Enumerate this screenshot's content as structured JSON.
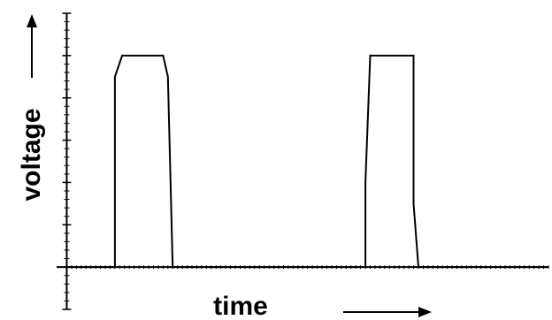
{
  "chart_data": {
    "type": "line",
    "xlabel": "time",
    "ylabel": "voltage",
    "grid": false,
    "axis_arrows": true,
    "line_color": "#000000",
    "series": [
      {
        "points": [
          [
            0.0,
            0.0
          ],
          [
            1.0,
            0.0
          ],
          [
            1.0,
            4.5
          ],
          [
            1.15,
            5.0
          ],
          [
            2.0,
            5.0
          ],
          [
            2.1,
            4.5
          ],
          [
            2.2,
            0.0
          ],
          [
            6.2,
            0.0
          ],
          [
            6.2,
            2.0
          ],
          [
            6.3,
            5.0
          ],
          [
            7.2,
            5.0
          ],
          [
            7.2,
            1.5
          ],
          [
            7.3,
            0.0
          ],
          [
            10.0,
            0.0
          ]
        ]
      }
    ],
    "xlim": [
      -0.1,
      10.0
    ],
    "ylim": [
      -1.0,
      6.0
    ]
  }
}
